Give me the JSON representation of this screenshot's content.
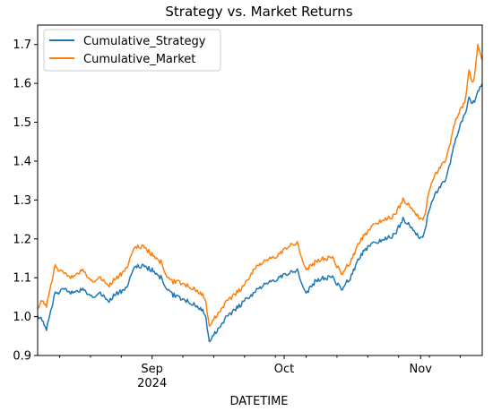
{
  "chart_data": {
    "type": "line",
    "title": "Strategy vs. Market Returns",
    "xlabel": "DATETIME",
    "ylabel": "",
    "ylim": [
      0.9,
      1.75
    ],
    "xlim": [
      "2024-08-06",
      "2024-11-15"
    ],
    "yticks": [
      "0.9",
      "1.0",
      "1.1",
      "1.2",
      "1.3",
      "1.4",
      "1.5",
      "1.6",
      "1.7"
    ],
    "xticks": [
      {
        "date": "2024-09-01",
        "label": "Sep",
        "sublabel": "2024"
      },
      {
        "date": "2024-10-01",
        "label": "Oct",
        "sublabel": ""
      },
      {
        "date": "2024-11-01",
        "label": "Nov",
        "sublabel": ""
      }
    ],
    "minor_xticks": [
      "2024-08-11",
      "2024-08-18",
      "2024-08-25",
      "2024-09-08",
      "2024-09-15",
      "2024-09-22",
      "2024-09-29",
      "2024-10-06",
      "2024-10-13",
      "2024-10-20",
      "2024-10-27",
      "2024-11-03",
      "2024-11-10"
    ],
    "grid": false,
    "legend": "upper left",
    "series": [
      {
        "name": "Cumulative_Strategy",
        "color": "#1f77b4",
        "points": [
          [
            "2024-08-06",
            1.0
          ],
          [
            "2024-08-07",
            0.99
          ],
          [
            "2024-08-08",
            0.97
          ],
          [
            "2024-08-10",
            1.06
          ],
          [
            "2024-08-12",
            1.07
          ],
          [
            "2024-08-14",
            1.06
          ],
          [
            "2024-08-16",
            1.07
          ],
          [
            "2024-08-18",
            1.05
          ],
          [
            "2024-08-20",
            1.06
          ],
          [
            "2024-08-22",
            1.04
          ],
          [
            "2024-08-24",
            1.06
          ],
          [
            "2024-08-26",
            1.07
          ],
          [
            "2024-08-28",
            1.13
          ],
          [
            "2024-08-30",
            1.13
          ],
          [
            "2024-09-01",
            1.12
          ],
          [
            "2024-09-03",
            1.1
          ],
          [
            "2024-09-05",
            1.06
          ],
          [
            "2024-09-07",
            1.05
          ],
          [
            "2024-09-09",
            1.04
          ],
          [
            "2024-09-11",
            1.03
          ],
          [
            "2024-09-13",
            1.01
          ],
          [
            "2024-09-14",
            0.94
          ],
          [
            "2024-09-16",
            0.97
          ],
          [
            "2024-09-18",
            1.0
          ],
          [
            "2024-09-20",
            1.02
          ],
          [
            "2024-09-22",
            1.04
          ],
          [
            "2024-09-24",
            1.06
          ],
          [
            "2024-09-26",
            1.08
          ],
          [
            "2024-09-28",
            1.09
          ],
          [
            "2024-09-30",
            1.1
          ],
          [
            "2024-10-02",
            1.11
          ],
          [
            "2024-10-04",
            1.12
          ],
          [
            "2024-10-06",
            1.06
          ],
          [
            "2024-10-08",
            1.09
          ],
          [
            "2024-10-10",
            1.1
          ],
          [
            "2024-10-12",
            1.1
          ],
          [
            "2024-10-14",
            1.07
          ],
          [
            "2024-10-16",
            1.1
          ],
          [
            "2024-10-18",
            1.15
          ],
          [
            "2024-10-20",
            1.18
          ],
          [
            "2024-10-22",
            1.19
          ],
          [
            "2024-10-24",
            1.2
          ],
          [
            "2024-10-26",
            1.21
          ],
          [
            "2024-10-28",
            1.25
          ],
          [
            "2024-10-30",
            1.23
          ],
          [
            "2024-11-01",
            1.2
          ],
          [
            "2024-11-02",
            1.22
          ],
          [
            "2024-11-03",
            1.28
          ],
          [
            "2024-11-05",
            1.33
          ],
          [
            "2024-11-07",
            1.36
          ],
          [
            "2024-11-09",
            1.46
          ],
          [
            "2024-11-11",
            1.52
          ],
          [
            "2024-11-12",
            1.56
          ],
          [
            "2024-11-13",
            1.55
          ],
          [
            "2024-11-14",
            1.58
          ],
          [
            "2024-11-15",
            1.6
          ]
        ]
      },
      {
        "name": "Cumulative_Market",
        "color": "#ff7f0e",
        "points": [
          [
            "2024-08-06",
            1.02
          ],
          [
            "2024-08-07",
            1.04
          ],
          [
            "2024-08-08",
            1.03
          ],
          [
            "2024-08-10",
            1.13
          ],
          [
            "2024-08-12",
            1.11
          ],
          [
            "2024-08-14",
            1.1
          ],
          [
            "2024-08-16",
            1.12
          ],
          [
            "2024-08-18",
            1.09
          ],
          [
            "2024-08-20",
            1.1
          ],
          [
            "2024-08-22",
            1.08
          ],
          [
            "2024-08-24",
            1.1
          ],
          [
            "2024-08-26",
            1.12
          ],
          [
            "2024-08-28",
            1.18
          ],
          [
            "2024-08-30",
            1.18
          ],
          [
            "2024-09-01",
            1.16
          ],
          [
            "2024-09-03",
            1.14
          ],
          [
            "2024-09-05",
            1.09
          ],
          [
            "2024-09-07",
            1.09
          ],
          [
            "2024-09-09",
            1.08
          ],
          [
            "2024-09-11",
            1.07
          ],
          [
            "2024-09-13",
            1.05
          ],
          [
            "2024-09-14",
            0.98
          ],
          [
            "2024-09-16",
            1.01
          ],
          [
            "2024-09-18",
            1.04
          ],
          [
            "2024-09-20",
            1.06
          ],
          [
            "2024-09-22",
            1.08
          ],
          [
            "2024-09-24",
            1.12
          ],
          [
            "2024-09-26",
            1.14
          ],
          [
            "2024-09-28",
            1.15
          ],
          [
            "2024-09-30",
            1.16
          ],
          [
            "2024-10-02",
            1.18
          ],
          [
            "2024-10-04",
            1.19
          ],
          [
            "2024-10-06",
            1.12
          ],
          [
            "2024-10-08",
            1.14
          ],
          [
            "2024-10-10",
            1.15
          ],
          [
            "2024-10-12",
            1.15
          ],
          [
            "2024-10-14",
            1.11
          ],
          [
            "2024-10-16",
            1.14
          ],
          [
            "2024-10-18",
            1.19
          ],
          [
            "2024-10-20",
            1.22
          ],
          [
            "2024-10-22",
            1.24
          ],
          [
            "2024-10-24",
            1.25
          ],
          [
            "2024-10-26",
            1.26
          ],
          [
            "2024-10-28",
            1.3
          ],
          [
            "2024-10-30",
            1.28
          ],
          [
            "2024-11-01",
            1.25
          ],
          [
            "2024-11-02",
            1.26
          ],
          [
            "2024-11-03",
            1.33
          ],
          [
            "2024-11-05",
            1.38
          ],
          [
            "2024-11-07",
            1.41
          ],
          [
            "2024-11-09",
            1.51
          ],
          [
            "2024-11-11",
            1.55
          ],
          [
            "2024-11-12",
            1.63
          ],
          [
            "2024-11-13",
            1.6
          ],
          [
            "2024-11-14",
            1.7
          ],
          [
            "2024-11-15",
            1.66
          ]
        ]
      }
    ]
  }
}
